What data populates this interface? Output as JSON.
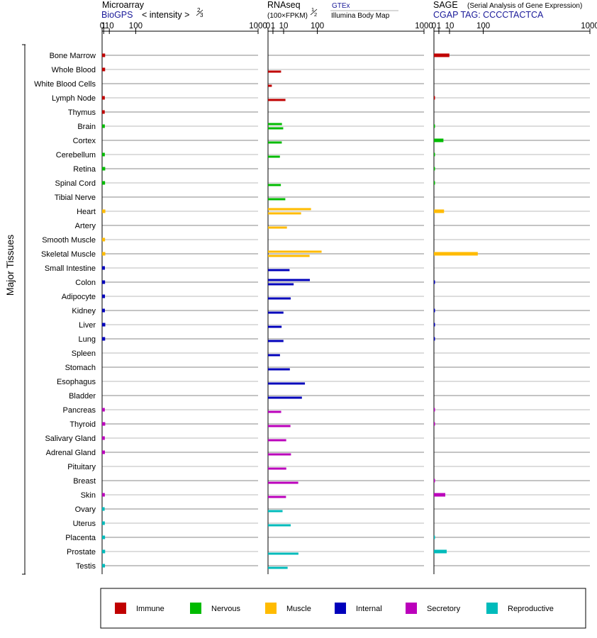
{
  "chart_data": {
    "type": "bar",
    "y_group_label": "Major Tissues",
    "categories": [
      "Bone Marrow",
      "Whole Blood",
      "White Blood Cells",
      "Lymph Node",
      "Thymus",
      "Brain",
      "Cortex",
      "Cerebellum",
      "Retina",
      "Spinal Cord",
      "Tibial Nerve",
      "Heart",
      "Artery",
      "Smooth Muscle",
      "Skeletal Muscle",
      "Small Intestine",
      "Colon",
      "Adipocyte",
      "Kidney",
      "Liver",
      "Lung",
      "Spleen",
      "Stomach",
      "Esophagus",
      "Bladder",
      "Pancreas",
      "Thyroid",
      "Salivary Gland",
      "Adrenal Gland",
      "Pituitary",
      "Breast",
      "Skin",
      "Ovary",
      "Uterus",
      "Placenta",
      "Prostate",
      "Testis"
    ],
    "category_group": [
      "Immune",
      "Immune",
      "Immune",
      "Immune",
      "Immune",
      "Nervous",
      "Nervous",
      "Nervous",
      "Nervous",
      "Nervous",
      "Nervous",
      "Muscle",
      "Muscle",
      "Muscle",
      "Muscle",
      "Internal",
      "Internal",
      "Internal",
      "Internal",
      "Internal",
      "Internal",
      "Internal",
      "Internal",
      "Internal",
      "Internal",
      "Secretory",
      "Secretory",
      "Secretory",
      "Secretory",
      "Secretory",
      "Secretory",
      "Secretory",
      "Reproductive",
      "Reproductive",
      "Reproductive",
      "Reproductive",
      "Reproductive"
    ],
    "legend": [
      {
        "name": "Immune",
        "color": "#c00000"
      },
      {
        "name": "Nervous",
        "color": "#00bb00"
      },
      {
        "name": "Muscle",
        "color": "#ffbb00"
      },
      {
        "name": "Internal",
        "color": "#0000bb"
      },
      {
        "name": "Secretory",
        "color": "#bb00bb"
      },
      {
        "name": "Reproductive",
        "color": "#00bbbb"
      }
    ],
    "panels": [
      {
        "title": "Microarray",
        "subtitle_source": "BioGPS",
        "subtitle_unit": "< intensity >",
        "exponent_num": "2",
        "exponent_den": "3",
        "ticks": [
          "0",
          "1",
          "10",
          "100",
          "1000"
        ],
        "xlim": [
          0,
          1000
        ],
        "scale_exponent": 0.6667,
        "series": [
          {
            "name": "",
            "values": [
              2.7,
              2.7,
              null,
              2.3,
              2.2,
              2.3,
              null,
              2.3,
              2.8,
              2.6,
              null,
              3.0,
              null,
              2.6,
              2.9,
              2.4,
              2.6,
              2.5,
              2.4,
              2.9,
              2.7,
              null,
              null,
              null,
              null,
              2.3,
              2.8,
              2.3,
              2.4,
              null,
              null,
              2.3,
              2.1,
              2.3,
              2.6,
              2.7,
              2.5
            ]
          }
        ]
      },
      {
        "title": "RNAseq",
        "subtitle_unit": "(100×FPKM)",
        "exponent_num": "1",
        "exponent_den": "2",
        "source_top": "GTEx",
        "source_bottom": "Illumina Body Map",
        "ticks": [
          "0",
          "1",
          "10",
          "100",
          "1000"
        ],
        "xlim": [
          0,
          1000
        ],
        "scale_exponent": 0.5,
        "series": [
          {
            "name": "GTEx",
            "values": [
              null,
              null,
              null,
              null,
              null,
              8,
              null,
              null,
              null,
              null,
              null,
              76,
              null,
              null,
              118,
              null,
              72,
              null,
              null,
              null,
              null,
              null,
              null,
              null,
              null,
              null,
              null,
              null,
              null,
              null,
              null,
              null,
              null,
              null,
              null,
              null,
              null
            ]
          },
          {
            "name": "Illumina Body Map",
            "values": [
              null,
              7,
              0.6,
              12.5,
              null,
              9.5,
              7.8,
              5.8,
              null,
              6.8,
              12.3,
              45,
              14.7,
              null,
              71,
              19.1,
              27,
              21.2,
              9.8,
              7.6,
              9.8,
              5.9,
              19.6,
              56,
              47.2,
              7.1,
              20.7,
              13.6,
              21.7,
              13.7,
              37.5,
              13.3,
              8.7,
              21.2,
              null,
              38,
              15.8
            ]
          }
        ]
      },
      {
        "title": "SAGE",
        "subtitle_note": "(Serial Analysis of Gene Expression)",
        "subtitle_tag": "CGAP TAG: CCCCTACTCA",
        "ticks": [
          "0",
          "1",
          "10",
          "100",
          "1000"
        ],
        "xlim": [
          0,
          1000
        ],
        "scale_exponent": 0.5,
        "series": [
          {
            "name": "",
            "values": [
              9.8,
              null,
              null,
              0.02,
              null,
              0.02,
              3.7,
              0.02,
              0.02,
              0.02,
              null,
              4.2,
              null,
              null,
              79,
              null,
              0.02,
              null,
              0.02,
              0.02,
              0.02,
              null,
              null,
              null,
              null,
              0.02,
              0.02,
              null,
              null,
              null,
              0.02,
              5.3,
              null,
              null,
              0.02,
              6.7,
              null
            ]
          }
        ]
      }
    ]
  }
}
